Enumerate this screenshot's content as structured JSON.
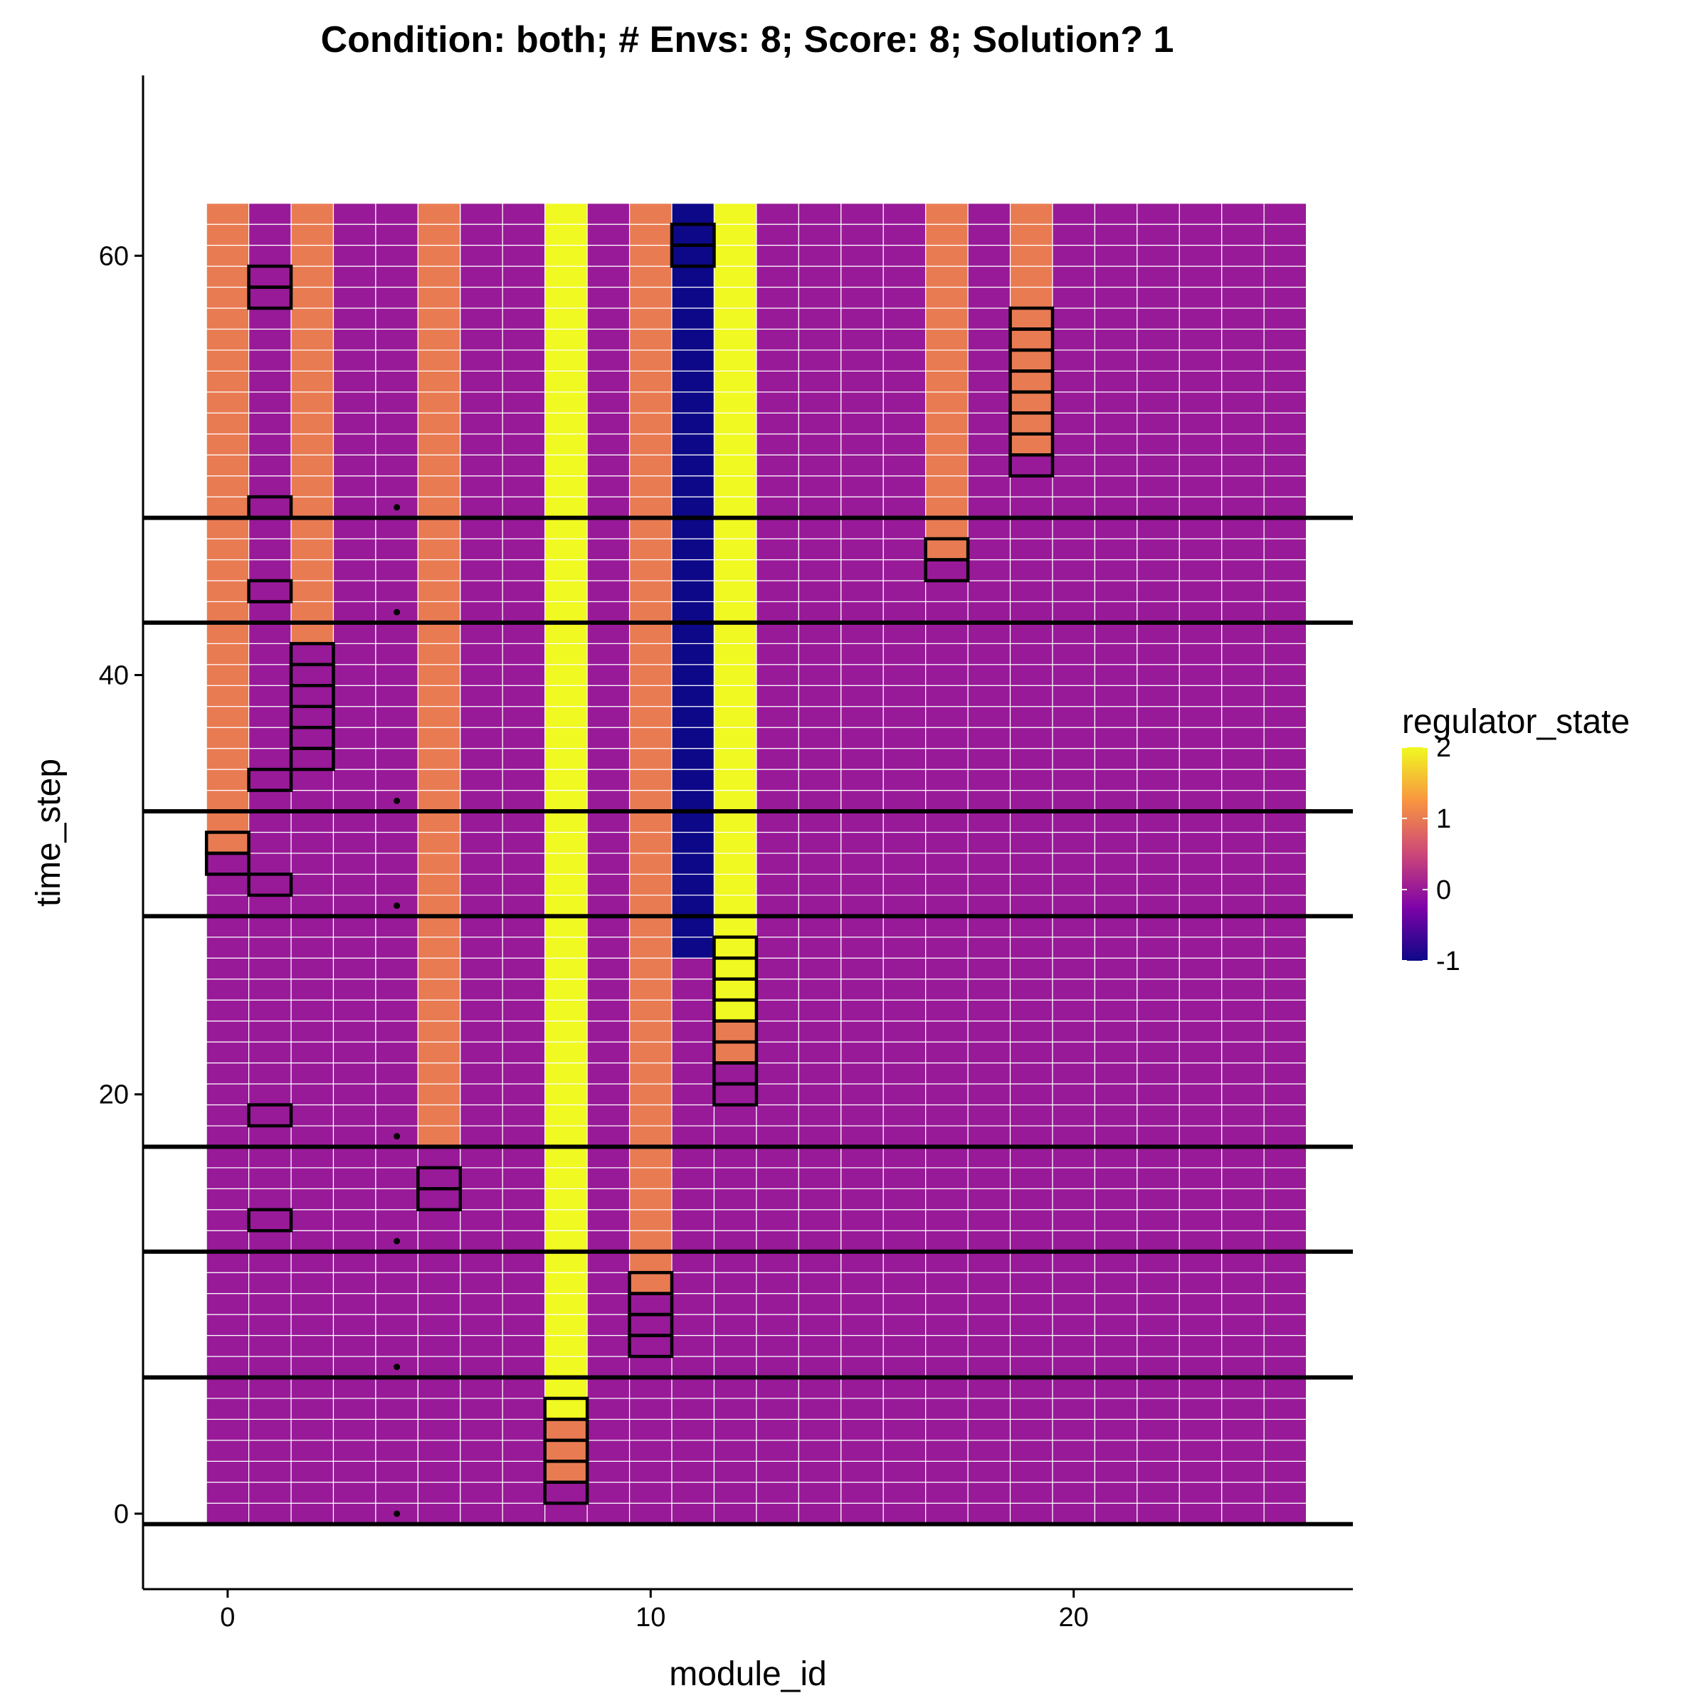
{
  "chart_data": {
    "type": "heatmap",
    "title": "Condition: both; # Envs: 8; Score: 8; Solution? 1",
    "xlabel": "module_id",
    "ylabel": "time_step",
    "xlim": [
      -2,
      26.6
    ],
    "ylim": [
      -3.6,
      68.6
    ],
    "x_ticks": [
      0,
      10,
      20
    ],
    "y_ticks": [
      0,
      20,
      40,
      60
    ],
    "module_count": 26,
    "time_steps": [
      0,
      62
    ],
    "value_field": "regulator_state",
    "colorscale": {
      "name": "plasma",
      "min": -1,
      "max": 2,
      "stops": [
        "#0d0887",
        "#7e03a8",
        "#cc4778",
        "#f89540",
        "#f0f921"
      ]
    },
    "background_value": 0,
    "columns": [
      {
        "module": 0,
        "segments": [
          {
            "from": 32,
            "to": 62,
            "value": 1
          }
        ]
      },
      {
        "module": 2,
        "segments": [
          {
            "from": 42,
            "to": 62,
            "value": 1
          }
        ]
      },
      {
        "module": 5,
        "segments": [
          {
            "from": 18,
            "to": 62,
            "value": 1
          }
        ]
      },
      {
        "module": 8,
        "segments": [
          {
            "from": 5,
            "to": 62,
            "value": 2
          },
          {
            "from": 2,
            "to": 4,
            "value": 1
          }
        ]
      },
      {
        "module": 10,
        "segments": [
          {
            "from": 11,
            "to": 62,
            "value": 1
          }
        ]
      },
      {
        "module": 11,
        "segments": [
          {
            "from": 27,
            "to": 62,
            "value": -1
          }
        ]
      },
      {
        "module": 12,
        "segments": [
          {
            "from": 24,
            "to": 62,
            "value": 2
          },
          {
            "from": 22,
            "to": 23,
            "value": 1
          }
        ]
      },
      {
        "module": 17,
        "segments": [
          {
            "from": 46,
            "to": 62,
            "value": 1
          }
        ]
      },
      {
        "module": 19,
        "segments": [
          {
            "from": 51,
            "to": 62,
            "value": 1
          }
        ]
      }
    ],
    "highlight_groups": [
      {
        "module": 1,
        "from": 58,
        "to": 59
      },
      {
        "module": 1,
        "from": 48,
        "to": 48
      },
      {
        "module": 1,
        "from": 44,
        "to": 44
      },
      {
        "module": 1,
        "from": 35,
        "to": 35
      },
      {
        "module": 1,
        "from": 30,
        "to": 30
      },
      {
        "module": 1,
        "from": 19,
        "to": 19
      },
      {
        "module": 1,
        "from": 14,
        "to": 14
      },
      {
        "module": 0,
        "from": 31,
        "to": 32
      },
      {
        "module": 2,
        "from": 36,
        "to": 41
      },
      {
        "module": 5,
        "from": 15,
        "to": 16
      },
      {
        "module": 8,
        "from": 1,
        "to": 5
      },
      {
        "module": 10,
        "from": 8,
        "to": 11
      },
      {
        "module": 11,
        "from": 60,
        "to": 61
      },
      {
        "module": 12,
        "from": 20,
        "to": 27
      },
      {
        "module": 17,
        "from": 45,
        "to": 46
      },
      {
        "module": 19,
        "from": 50,
        "to": 57
      }
    ],
    "env_boundaries": [
      -0.5,
      12.5,
      17.5,
      28.5,
      33.5,
      42.5,
      47.5,
      6.5
    ],
    "env_markers": [
      {
        "x": 4,
        "y": 0
      },
      {
        "x": 4,
        "y": 7
      },
      {
        "x": 4,
        "y": 13
      },
      {
        "x": 4,
        "y": 18
      },
      {
        "x": 4,
        "y": 29
      },
      {
        "x": 4,
        "y": 34
      },
      {
        "x": 4,
        "y": 43
      },
      {
        "x": 4,
        "y": 48
      }
    ],
    "legend": {
      "title": "regulator_state",
      "ticks": [
        2,
        1,
        0,
        -1
      ],
      "placement": "right"
    }
  }
}
